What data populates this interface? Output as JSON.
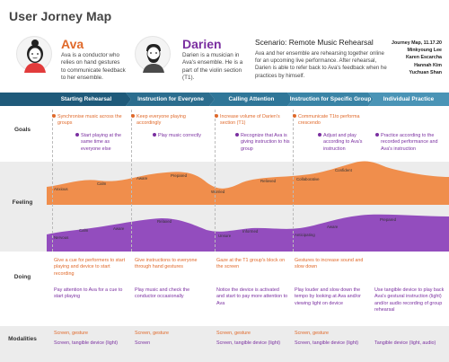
{
  "title": "User Jorney Map",
  "personas": [
    {
      "name": "Ava",
      "description": "Ava is a conductor who relies on hand gestures to communicate feedback to her ensemble.",
      "color": "#e0692a",
      "icon": "female-avatar-icon"
    },
    {
      "name": "Darien",
      "description": "Darien is a musician in Ava's ensemble. He is a part of the violin section (T1).",
      "color": "#7a2fa0",
      "icon": "male-avatar-icon"
    }
  ],
  "scenario": {
    "title": "Scenario: Remote Music Rehearsal",
    "text": "Ava and her ensemble are rehearsing together online for an upcoming live performance. After rehearsal, Darien is able to refer back to Ava's feedback when he practices by himself."
  },
  "meta": [
    "Journey Map, 11.17.20",
    "Minkyoung Lee",
    "Karen Escarcha",
    "Hannah Kim",
    "Yuchuan Shan"
  ],
  "stages": [
    "Starting Rehearsal",
    "Instruction for Everyone",
    "Calling Attention",
    "Instruction for Specific Group",
    "Individual Practice"
  ],
  "row_labels": {
    "goals": "Goals",
    "feeling": "Feeling",
    "doing": "Doing",
    "modalities": "Modalities"
  },
  "goals": [
    {
      "text": "Synchronise music across the groups",
      "who": "Ava"
    },
    {
      "text": "Start playing at the same time as everyone else",
      "who": "Darien"
    },
    {
      "text": "Keep everyone playing accordingly",
      "who": "Ava"
    },
    {
      "text": "Play music correctly",
      "who": "Darien"
    },
    {
      "text": "Increase volume of Darien's section (T1)",
      "who": "Ava"
    },
    {
      "text": "Recognize that Ava is giving instruction to his group",
      "who": "Darien"
    },
    {
      "text": "Communicate T1to performa crescendo",
      "who": "Ava"
    },
    {
      "text": "Adjust and play according to Ava's instruction",
      "who": "Darien"
    },
    {
      "text": "Practice according to the recorded performance and Ava's instruction",
      "who": "Darien"
    }
  ],
  "feeling": {
    "ava": [
      "Anxious",
      "Calm",
      "Aware",
      "Prepared",
      "Worried",
      "Relieved",
      "Collaborative",
      "Confident"
    ],
    "darien": [
      "Nervous",
      "Calm",
      "Aware",
      "Relaxed",
      "Unsure",
      "Informed",
      "Anticipating",
      "Aware",
      "Prepared"
    ]
  },
  "doing": [
    {
      "ava": "Give a cue for performers to start playing and device to start recording",
      "darien": "Pay attention to Ava for a cue to start playing"
    },
    {
      "ava": "Give instructions to everyone through hand gestures",
      "darien": "Play music and check the conductor occasionally"
    },
    {
      "ava": "Gaze at the T1 group's block on the screen",
      "darien": "Notice the device is activated and start to pay more attention to Ava"
    },
    {
      "ava": "Gestures to increase sound and slow down",
      "darien": "Play louder and slow down the tempo by looking at Ava and/or viewing light on device"
    },
    {
      "ava": "",
      "darien": "Use tangible device to play back Ava's gestural instruction (light) and/or audio recording of group rehearsal"
    }
  ],
  "modalities": [
    {
      "ava": "Screen, gesture",
      "darien": "Screen, tangible device (light)"
    },
    {
      "ava": "Screen, gesture",
      "darien": "Screen"
    },
    {
      "ava": "Screen, gesture",
      "darien": "Screen, tangible device (light)"
    },
    {
      "ava": "Screen, gesture",
      "darien": "Screen, tangible device (light)"
    },
    {
      "ava": "",
      "darien": "Tangible device (light, audio)"
    }
  ],
  "colors": {
    "ava": "#e0692a",
    "darien": "#7a2fa0",
    "stage_bar": "#1f5a7a",
    "stage_bar_light": "#4a8fb0",
    "band": "#ececec"
  }
}
